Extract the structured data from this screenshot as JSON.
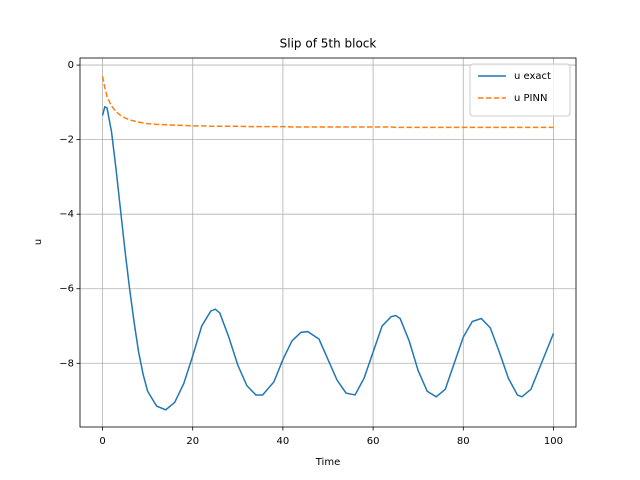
{
  "chart_data": {
    "type": "line",
    "title": "Slip of 5th block",
    "xlabel": "Time",
    "ylabel": "u",
    "x": [
      0,
      0.5,
      1,
      2,
      3,
      4,
      5,
      6,
      7,
      8,
      9,
      10,
      12,
      14,
      16,
      18,
      20,
      22,
      24,
      25,
      26,
      28,
      30,
      32,
      34,
      35.5,
      38,
      40,
      42,
      44,
      45.5,
      48,
      50,
      52,
      54,
      56,
      58,
      60,
      62,
      64,
      65,
      66,
      68,
      70,
      72,
      74,
      76,
      78,
      80,
      82,
      84,
      86,
      88,
      90,
      92,
      93,
      95,
      97,
      99,
      100
    ],
    "series": [
      {
        "name": "u exact",
        "color": "#1f77b4",
        "dash": false,
        "values": [
          -1.35,
          -1.12,
          -1.15,
          -1.8,
          -2.8,
          -3.9,
          -5.0,
          -6.0,
          -6.9,
          -7.7,
          -8.3,
          -8.75,
          -9.15,
          -9.25,
          -9.05,
          -8.55,
          -7.8,
          -7.0,
          -6.6,
          -6.55,
          -6.65,
          -7.3,
          -8.05,
          -8.6,
          -8.85,
          -8.85,
          -8.5,
          -7.9,
          -7.4,
          -7.17,
          -7.15,
          -7.35,
          -7.9,
          -8.45,
          -8.8,
          -8.85,
          -8.4,
          -7.7,
          -7.0,
          -6.75,
          -6.72,
          -6.8,
          -7.4,
          -8.2,
          -8.75,
          -8.9,
          -8.7,
          -8.0,
          -7.3,
          -6.88,
          -6.8,
          -7.05,
          -7.7,
          -8.4,
          -8.85,
          -8.9,
          -8.7,
          -8.1,
          -7.5,
          -7.2
        ]
      },
      {
        "name": "u PINN",
        "color": "#ff7f0e",
        "dash": true,
        "values": [
          -0.3,
          -0.6,
          -0.85,
          -1.1,
          -1.25,
          -1.35,
          -1.42,
          -1.47,
          -1.5,
          -1.53,
          -1.55,
          -1.57,
          -1.59,
          -1.6,
          -1.61,
          -1.62,
          -1.63,
          -1.63,
          -1.64,
          -1.64,
          -1.64,
          -1.64,
          -1.64,
          -1.65,
          -1.65,
          -1.65,
          -1.65,
          -1.65,
          -1.66,
          -1.66,
          -1.66,
          -1.66,
          -1.66,
          -1.66,
          -1.66,
          -1.66,
          -1.66,
          -1.66,
          -1.66,
          -1.66,
          -1.67,
          -1.67,
          -1.67,
          -1.67,
          -1.67,
          -1.67,
          -1.67,
          -1.67,
          -1.67,
          -1.67,
          -1.67,
          -1.67,
          -1.67,
          -1.67,
          -1.67,
          -1.67,
          -1.67,
          -1.67,
          -1.67,
          -1.67
        ]
      }
    ],
    "xlim": [
      -5,
      105
    ],
    "xticks": [
      0,
      20,
      40,
      60,
      80,
      100
    ],
    "ylim": [
      -9.71,
      0.19
    ],
    "yticks": [
      {
        "value": -8,
        "label": "−8"
      },
      {
        "value": -6,
        "label": "−6"
      },
      {
        "value": -4,
        "label": "−4"
      },
      {
        "value": -2,
        "label": "−2"
      },
      0
    ],
    "grid": true,
    "legend": "upper right"
  }
}
